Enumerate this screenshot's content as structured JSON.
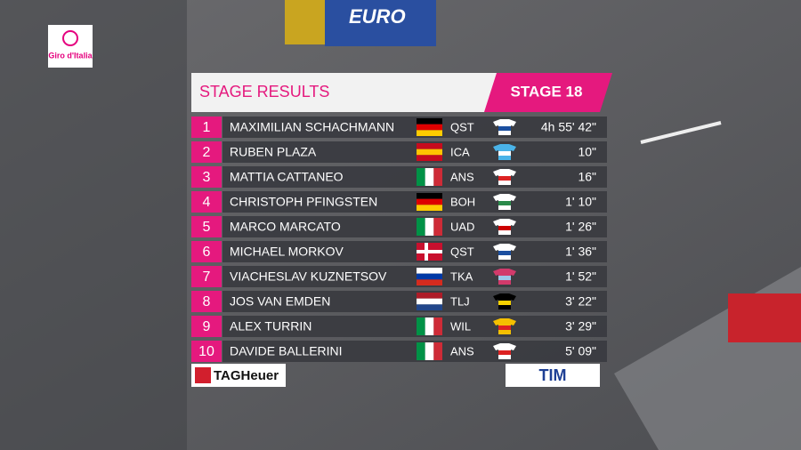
{
  "logo": "Giro d'Italia",
  "banner": "EURO",
  "header": {
    "title": "STAGE RESULTS",
    "stage": "STAGE 18"
  },
  "rows": [
    {
      "rank": 1,
      "name": "MAXIMILIAN SCHACHMANN",
      "team": "QST",
      "time": "4h 55' 42\""
    },
    {
      "rank": 2,
      "name": "RUBEN PLAZA",
      "team": "ICA",
      "time": "10\""
    },
    {
      "rank": 3,
      "name": "MATTIA CATTANEO",
      "team": "ANS",
      "time": "16\""
    },
    {
      "rank": 4,
      "name": "CHRISTOPH PFINGSTEN",
      "team": "BOH",
      "time": "1' 10\""
    },
    {
      "rank": 5,
      "name": "MARCO MARCATO",
      "team": "UAD",
      "time": "1' 26\""
    },
    {
      "rank": 6,
      "name": "MICHAEL MORKOV",
      "team": "QST",
      "time": "1' 36\""
    },
    {
      "rank": 7,
      "name": "VIACHESLAV KUZNETSOV",
      "team": "TKA",
      "time": "1' 52\""
    },
    {
      "rank": 8,
      "name": "JOS VAN EMDEN",
      "team": "TLJ",
      "time": "3' 22\""
    },
    {
      "rank": 9,
      "name": "ALEX TURRIN",
      "team": "WIL",
      "time": "3' 29\""
    },
    {
      "rank": 10,
      "name": "DAVIDE BALLERINI",
      "team": "ANS",
      "time": "5' 09\""
    }
  ],
  "sponsors": {
    "left": "TAGHeuer",
    "right": "TIM"
  }
}
